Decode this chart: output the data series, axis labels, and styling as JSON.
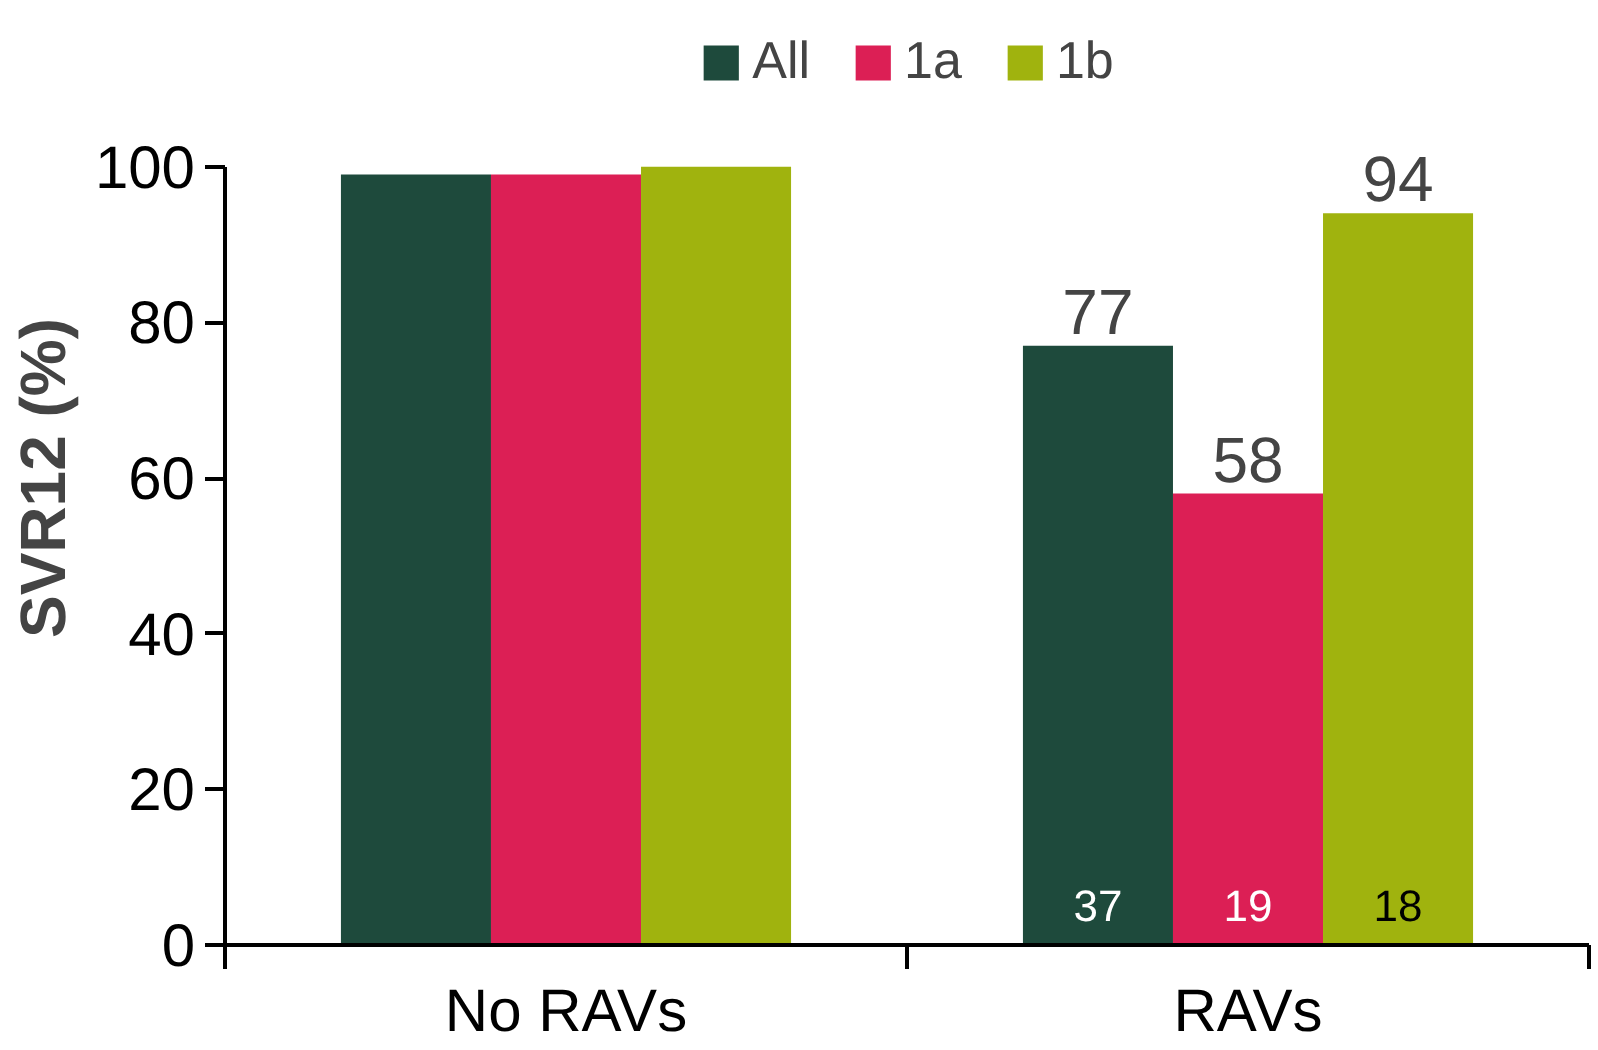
{
  "chart_data": {
    "type": "bar",
    "ylabel": "SVR12 (%)",
    "categories": [
      "No RAVs",
      "RAVs"
    ],
    "series": [
      {
        "name": "All",
        "color": "#1e4a3c",
        "values": [
          99,
          77
        ],
        "value_labels": [
          null,
          "77"
        ]
      },
      {
        "name": "1a",
        "color": "#dc1f55",
        "values": [
          99,
          58
        ],
        "value_labels": [
          null,
          "58"
        ]
      },
      {
        "name": "1b",
        "color": "#a0b30e",
        "values": [
          100,
          94
        ],
        "value_labels": [
          null,
          "94"
        ]
      }
    ],
    "annotations": [
      "37",
      "19",
      "18"
    ],
    "ylim": [
      0,
      100
    ],
    "yticks": [
      0,
      20,
      40,
      60,
      80,
      100
    ],
    "grid": false,
    "legend": "top"
  }
}
